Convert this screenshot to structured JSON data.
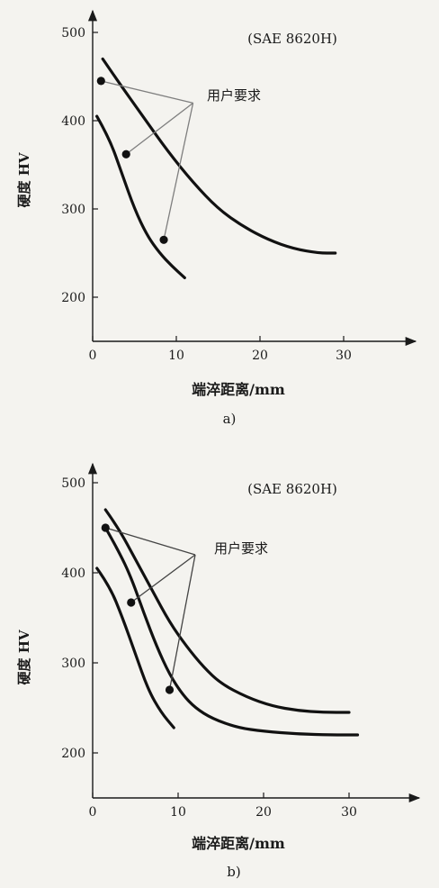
{
  "chart_data": [
    {
      "type": "line",
      "panel_label": "a)",
      "title": "(SAE 8620H)",
      "xlabel": "端淬距离/mm",
      "ylabel": "硬度 HV",
      "xlim": [
        0,
        35
      ],
      "ylim": [
        150,
        510
      ],
      "xticks": [
        0,
        10,
        20,
        30
      ],
      "yticks": [
        200,
        300,
        400,
        500
      ],
      "grid": false,
      "series": [
        {
          "role": "upper-band",
          "x": [
            1.2,
            3,
            6,
            9,
            12,
            15,
            18,
            21,
            24,
            27,
            29
          ],
          "y": [
            470,
            445,
            405,
            365,
            330,
            300,
            280,
            265,
            255,
            250,
            250
          ]
        },
        {
          "role": "lower-band",
          "x": [
            0.5,
            2,
            3.5,
            5,
            6.5,
            8,
            9.5,
            11
          ],
          "y": [
            405,
            380,
            340,
            300,
            270,
            250,
            235,
            222
          ]
        }
      ],
      "points": [
        {
          "x": 1,
          "y": 445
        },
        {
          "x": 4,
          "y": 362
        },
        {
          "x": 8.5,
          "y": 265
        }
      ],
      "annotation": {
        "text": "用户要求",
        "anchor": {
          "x": 12,
          "y": 420
        }
      }
    },
    {
      "type": "line",
      "panel_label": "b)",
      "title": "(SAE 8620H)",
      "xlabel": "端淬距离/mm",
      "ylabel": "硬度 HV",
      "xlim": [
        0,
        35
      ],
      "ylim": [
        150,
        510
      ],
      "xticks": [
        0,
        10,
        20,
        30
      ],
      "yticks": [
        200,
        300,
        400,
        500
      ],
      "grid": false,
      "series": [
        {
          "role": "upper-band",
          "x": [
            1.5,
            3,
            5,
            7,
            9,
            11,
            13,
            15,
            18,
            21,
            24,
            27,
            30
          ],
          "y": [
            470,
            450,
            415,
            380,
            345,
            318,
            295,
            277,
            262,
            252,
            247,
            245,
            245
          ]
        },
        {
          "role": "middle-curve",
          "x": [
            1.5,
            3,
            4.5,
            6,
            7.5,
            9,
            10.5,
            12,
            14,
            17,
            20,
            24,
            28,
            31
          ],
          "y": [
            450,
            425,
            395,
            355,
            318,
            287,
            265,
            250,
            238,
            228,
            224,
            221,
            220,
            220
          ]
        },
        {
          "role": "lower-band",
          "x": [
            0.5,
            2,
            3.5,
            5,
            6.5,
            8,
            9.5
          ],
          "y": [
            405,
            385,
            350,
            310,
            270,
            245,
            228
          ]
        }
      ],
      "points": [
        {
          "x": 1.5,
          "y": 450
        },
        {
          "x": 4.5,
          "y": 367
        },
        {
          "x": 9,
          "y": 270
        }
      ],
      "annotation": {
        "text": "用户要求",
        "anchor": {
          "x": 12,
          "y": 420
        }
      }
    }
  ]
}
